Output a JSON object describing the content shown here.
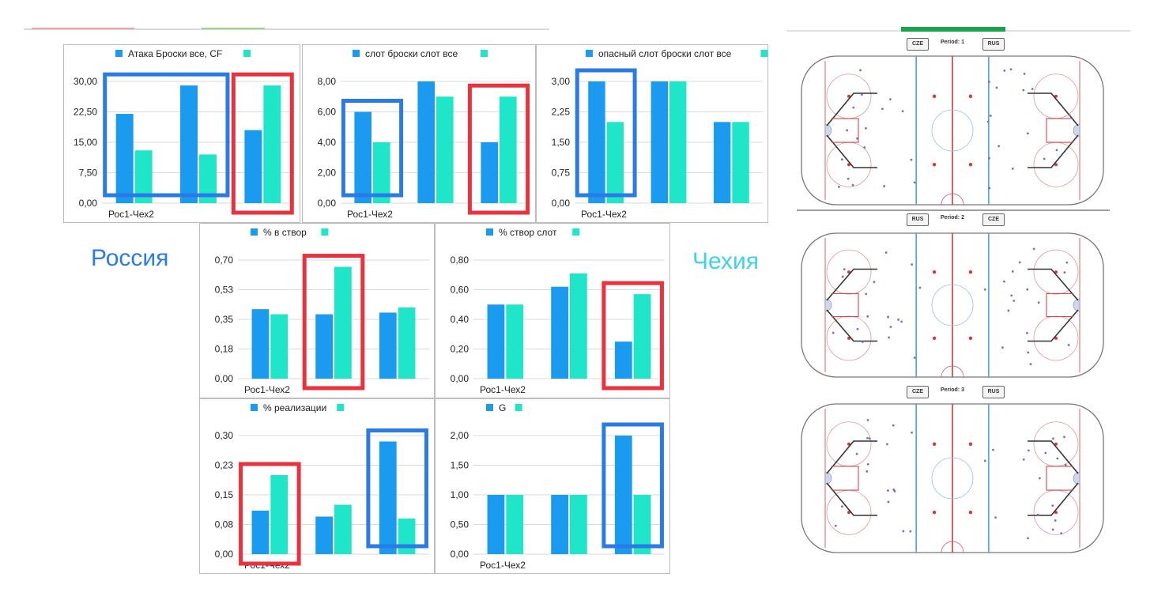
{
  "colors": {
    "russia": "#1a9bf0",
    "czech": "#1fe6c8",
    "box_blue": "#2b7be4",
    "box_red": "#e8333f",
    "grid": "#d9d9d9",
    "rink_red": "#d43a3a",
    "rink_blue": "#4aa3d8"
  },
  "labels": {
    "russia": "Россия",
    "czech": "Чехия"
  },
  "chart_data": [
    {
      "id": "c1",
      "type": "bar",
      "legend": [
        "Атака Броски все, CF",
        ""
      ],
      "xlabel": "Рос1-Чех2",
      "yticks": [
        "0,00",
        "7,50",
        "15,00",
        "22,50",
        "30,00"
      ],
      "ylim": [
        0,
        30
      ],
      "series": [
        {
          "values": [
            22,
            29,
            18
          ]
        },
        {
          "values": [
            13,
            12,
            29
          ]
        }
      ],
      "highlights": [
        {
          "color": "blue",
          "from": 0,
          "to": 1
        },
        {
          "color": "red",
          "from": 2,
          "to": 2
        }
      ]
    },
    {
      "id": "c2",
      "type": "bar",
      "legend": [
        "слот броски слот все",
        ""
      ],
      "xlabel": "Рос1-Чех2",
      "yticks": [
        "0,00",
        "2,00",
        "4,00",
        "6,00",
        "8,00"
      ],
      "ylim": [
        0,
        8
      ],
      "series": [
        {
          "values": [
            6,
            8,
            4
          ]
        },
        {
          "values": [
            4,
            7,
            7
          ]
        }
      ],
      "highlights": [
        {
          "color": "blue",
          "from": 0,
          "to": 0
        },
        {
          "color": "red",
          "from": 2,
          "to": 2
        }
      ]
    },
    {
      "id": "c3",
      "type": "bar",
      "legend": [
        "опасный слот  броски слот все",
        ""
      ],
      "xlabel": "Рос1-Чех2",
      "yticks": [
        "0,00",
        "0,75",
        "1,50",
        "2,25",
        "3,00"
      ],
      "ylim": [
        0,
        3
      ],
      "series": [
        {
          "values": [
            3,
            3,
            2
          ]
        },
        {
          "values": [
            2,
            3,
            2
          ]
        }
      ],
      "highlights": [
        {
          "color": "blue",
          "from": 0,
          "to": 0
        }
      ]
    },
    {
      "id": "c4",
      "type": "bar",
      "legend": [
        "% в створ",
        ""
      ],
      "xlabel": "Рос1-Чех2",
      "yticks": [
        "0,00",
        "0,18",
        "0,35",
        "0,53",
        "0,70"
      ],
      "ylim": [
        0,
        0.7
      ],
      "series": [
        {
          "values": [
            0.41,
            0.38,
            0.39
          ]
        },
        {
          "values": [
            0.38,
            0.66,
            0.42
          ]
        }
      ],
      "highlights": [
        {
          "color": "red",
          "from": 1,
          "to": 1
        }
      ]
    },
    {
      "id": "c5",
      "type": "bar",
      "legend": [
        "% створ слот",
        ""
      ],
      "xlabel": "Рос1-Чех2",
      "yticks": [
        "0,00",
        "0,20",
        "0,40",
        "0,60",
        "0,80"
      ],
      "ylim": [
        0,
        0.8
      ],
      "series": [
        {
          "values": [
            0.5,
            0.62,
            0.25
          ]
        },
        {
          "values": [
            0.5,
            0.71,
            0.57
          ]
        }
      ],
      "highlights": [
        {
          "color": "red",
          "from": 2,
          "to": 2
        }
      ]
    },
    {
      "id": "c6",
      "type": "bar",
      "legend": [
        "% реализации",
        ""
      ],
      "xlabel": "Рос1-Чех2",
      "yticks": [
        "0,00",
        "0,08",
        "0,15",
        "0,23",
        "0,30"
      ],
      "ylim": [
        0,
        0.3
      ],
      "series": [
        {
          "values": [
            0.11,
            0.095,
            0.285
          ]
        },
        {
          "values": [
            0.2,
            0.125,
            0.09
          ]
        }
      ],
      "highlights": [
        {
          "color": "red",
          "from": 0,
          "to": 0
        },
        {
          "color": "blue",
          "from": 2,
          "to": 2
        }
      ]
    },
    {
      "id": "c7",
      "type": "bar",
      "legend": [
        "G",
        ""
      ],
      "xlabel": "Рос1-Чех2",
      "yticks": [
        "0,00",
        "0,50",
        "1,00",
        "1,50",
        "2,00"
      ],
      "ylim": [
        0,
        2
      ],
      "series": [
        {
          "values": [
            1,
            1,
            2
          ]
        },
        {
          "values": [
            1,
            1,
            1
          ]
        }
      ],
      "highlights": [
        {
          "color": "blue",
          "from": 2,
          "to": 2
        }
      ]
    }
  ],
  "rinks": [
    {
      "period": "Period: 1",
      "left_team": "CZE",
      "right_team": "RUS"
    },
    {
      "period": "Period: 2",
      "left_team": "RUS",
      "right_team": "CZE"
    },
    {
      "period": "Period: 3",
      "left_team": "CZE",
      "right_team": "RUS"
    }
  ]
}
